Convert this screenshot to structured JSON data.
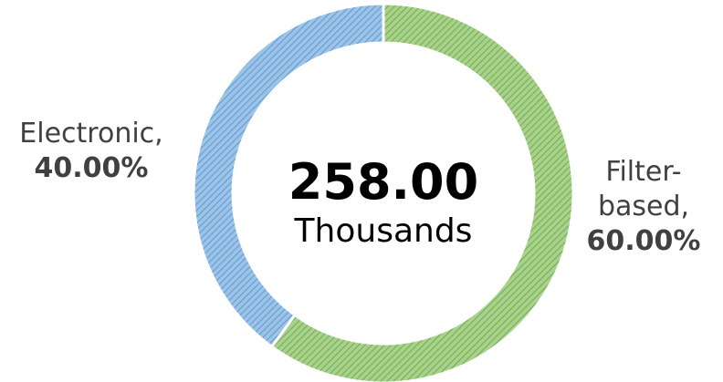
{
  "chart_data": {
    "type": "donut",
    "categories": [
      "Filter-based,",
      "Electronic,"
    ],
    "values": [
      60,
      40
    ],
    "value_labels": [
      "60.00%",
      "40.00%"
    ],
    "colors": [
      "#a9d18e",
      "#9dc3e6"
    ],
    "hatch_colors": [
      "#70ad47",
      "#5b9bd5"
    ],
    "center_text": "258.00",
    "center_subtext": "Thousands"
  }
}
